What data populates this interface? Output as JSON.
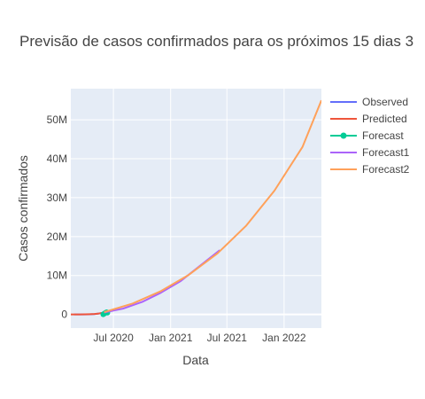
{
  "chart_data": {
    "type": "line",
    "title": "Previsão de casos confirmados para os próximos 15 dias 3",
    "xlabel": "Data",
    "ylabel": "Casos confirmados",
    "xlim": [
      "2020-02-15",
      "2022-05-01"
    ],
    "ylim": [
      -3500000,
      58000000
    ],
    "grid": true,
    "legend_position": "right",
    "x_ticks": [
      {
        "date": "2020-07-01",
        "label": "Jul 2020"
      },
      {
        "date": "2021-01-01",
        "label": "Jan 2021"
      },
      {
        "date": "2021-07-01",
        "label": "Jul 2021"
      },
      {
        "date": "2022-01-01",
        "label": "Jan 2022"
      }
    ],
    "y_ticks": [
      {
        "value": 0,
        "label": "0"
      },
      {
        "value": 10000000,
        "label": "10M"
      },
      {
        "value": 20000000,
        "label": "20M"
      },
      {
        "value": 30000000,
        "label": "30M"
      },
      {
        "value": 40000000,
        "label": "40M"
      },
      {
        "value": 50000000,
        "label": "50M"
      }
    ],
    "series": [
      {
        "name": "Observed",
        "color": "#636efa",
        "mode": "lines",
        "x": [
          "2020-02-26",
          "2020-03-15",
          "2020-04-01",
          "2020-04-15",
          "2020-05-01",
          "2020-05-15",
          "2020-05-28"
        ],
        "y": [
          0,
          200,
          6000,
          28000,
          92000,
          220000,
          438000
        ]
      },
      {
        "name": "Predicted",
        "color": "#ef553b",
        "mode": "lines",
        "x": [
          "2020-02-15",
          "2020-03-15",
          "2020-04-01",
          "2020-04-15",
          "2020-05-01",
          "2020-05-15",
          "2020-05-28"
        ],
        "y": [
          0,
          5000,
          20000,
          50000,
          110000,
          240000,
          440000
        ]
      },
      {
        "name": "Forecast",
        "color": "#00cc96",
        "mode": "lines+markers",
        "x": [
          "2020-05-29",
          "2020-05-30",
          "2020-05-31",
          "2020-06-01",
          "2020-06-02",
          "2020-06-03",
          "2020-06-04",
          "2020-06-05",
          "2020-06-06",
          "2020-06-07",
          "2020-06-08",
          "2020-06-09",
          "2020-06-10",
          "2020-06-11",
          "2020-06-12"
        ],
        "y": [
          0,
          55000,
          110000,
          165000,
          220000,
          275000,
          330000,
          385000,
          440000,
          495000,
          550000,
          580000,
          560000,
          500000,
          420000
        ]
      },
      {
        "name": "Forecast1",
        "color": "#ab63fa",
        "mode": "lines",
        "x": [
          "2020-06-01",
          "2020-08-01",
          "2020-10-01",
          "2020-12-01",
          "2021-02-01",
          "2021-04-01",
          "2021-06-08"
        ],
        "y": [
          500000,
          1500000,
          3200000,
          5600000,
          8500000,
          12200000,
          16500000
        ]
      },
      {
        "name": "Forecast2",
        "color": "#ffa15a",
        "mode": "lines",
        "x": [
          "2020-06-01",
          "2020-09-01",
          "2020-12-01",
          "2021-03-01",
          "2021-06-01",
          "2021-09-01",
          "2021-12-01",
          "2022-03-01",
          "2022-05-01"
        ],
        "y": [
          600000,
          2800000,
          6000000,
          10200000,
          15700000,
          22800000,
          31800000,
          43000000,
          55000000
        ]
      }
    ]
  }
}
